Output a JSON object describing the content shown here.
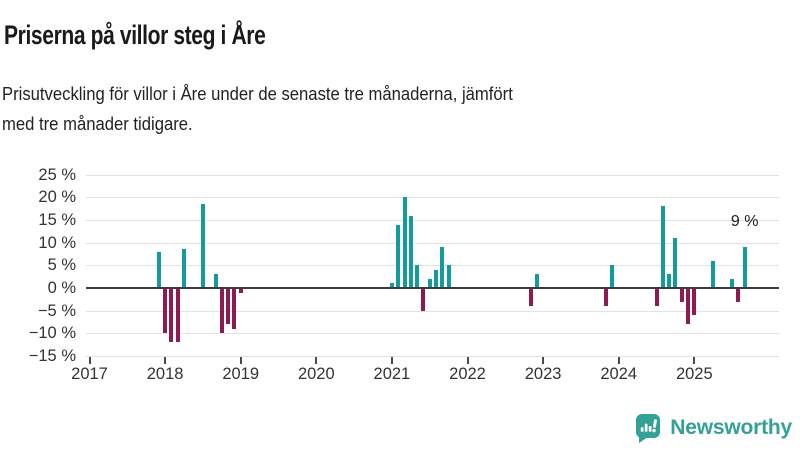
{
  "header": {
    "title": "Priserna på villor steg i Åre",
    "subtitle_lines": [
      "Prisutveckling för villor i Åre under de senaste tre månaderna, jämfört",
      "med tre månader tidigare."
    ]
  },
  "chart_data": {
    "type": "bar",
    "title": "Priserna på villor steg i Åre",
    "xlabel": "",
    "ylabel": "",
    "unit": "%",
    "ylim": [
      -15,
      25
    ],
    "grid": true,
    "y_tick_labels": [
      "25 %",
      "20 %",
      "15 %",
      "10 %",
      "5 %",
      "0 %",
      "−5 %",
      "−10 %",
      "−15 %"
    ],
    "y_tick_values": [
      25,
      20,
      15,
      10,
      5,
      0,
      -5,
      -10,
      -15
    ],
    "x_tick_labels": [
      "2017",
      "2018",
      "2019",
      "2020",
      "2021",
      "2022",
      "2023",
      "2024",
      "2025"
    ],
    "x_tick_years": [
      2017,
      2018,
      2019,
      2020,
      2021,
      2022,
      2023,
      2024,
      2025
    ],
    "annotation": {
      "text": "9 %",
      "month": "2025-09",
      "value": 9
    },
    "colors": {
      "positive": "#149c9d",
      "negative": "#8f1a52"
    },
    "bars": [
      {
        "month": "2017-12",
        "value": 8
      },
      {
        "month": "2018-01",
        "value": -10
      },
      {
        "month": "2018-02",
        "value": -12
      },
      {
        "month": "2018-03",
        "value": -12
      },
      {
        "month": "2018-04",
        "value": 8.5
      },
      {
        "month": "2018-07",
        "value": 18.5
      },
      {
        "month": "2018-09",
        "value": 3
      },
      {
        "month": "2018-10",
        "value": -10
      },
      {
        "month": "2018-11",
        "value": -8
      },
      {
        "month": "2018-12",
        "value": -9
      },
      {
        "month": "2019-01",
        "value": -1
      },
      {
        "month": "2021-01",
        "value": 1
      },
      {
        "month": "2021-02",
        "value": 14
      },
      {
        "month": "2021-03",
        "value": 20
      },
      {
        "month": "2021-04",
        "value": 16
      },
      {
        "month": "2021-05",
        "value": 5
      },
      {
        "month": "2021-06",
        "value": -5
      },
      {
        "month": "2021-07",
        "value": 2
      },
      {
        "month": "2021-08",
        "value": 4
      },
      {
        "month": "2021-09",
        "value": 9
      },
      {
        "month": "2021-10",
        "value": 5
      },
      {
        "month": "2022-11",
        "value": -4
      },
      {
        "month": "2022-12",
        "value": 3
      },
      {
        "month": "2023-11",
        "value": -4
      },
      {
        "month": "2023-12",
        "value": 5
      },
      {
        "month": "2024-07",
        "value": -4
      },
      {
        "month": "2024-08",
        "value": 18
      },
      {
        "month": "2024-09",
        "value": 3
      },
      {
        "month": "2024-10",
        "value": 11
      },
      {
        "month": "2024-11",
        "value": -3
      },
      {
        "month": "2024-12",
        "value": -8
      },
      {
        "month": "2025-01",
        "value": -6
      },
      {
        "month": "2025-04",
        "value": 6
      },
      {
        "month": "2025-07",
        "value": 2
      },
      {
        "month": "2025-08",
        "value": -3
      },
      {
        "month": "2025-09",
        "value": 9
      }
    ]
  },
  "footer": {
    "brand": "Newsworthy"
  }
}
